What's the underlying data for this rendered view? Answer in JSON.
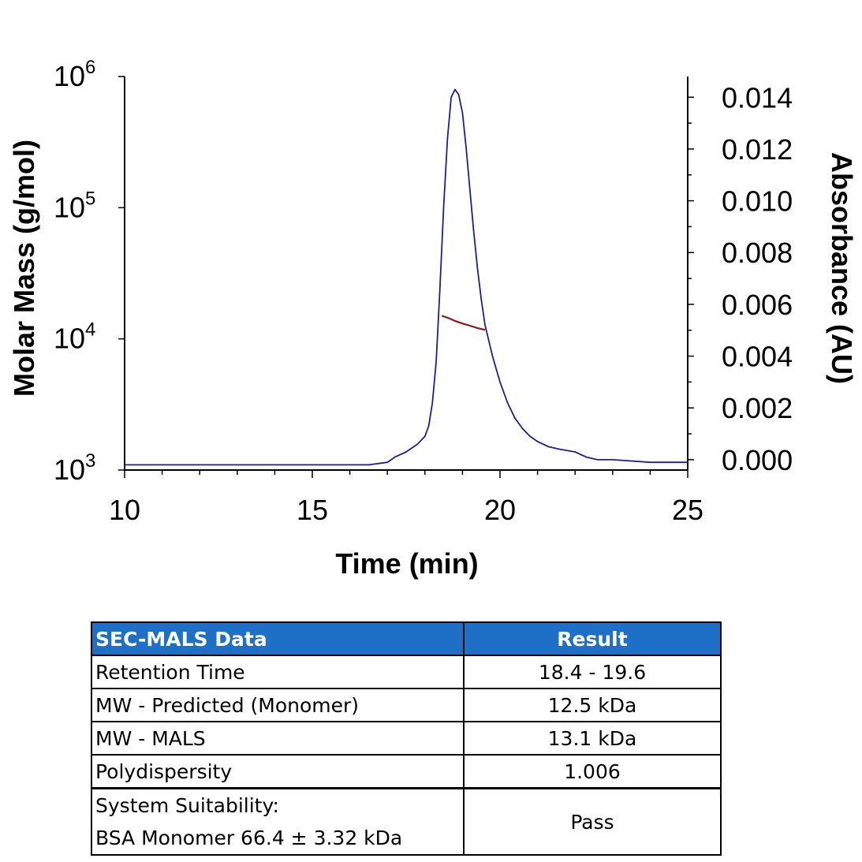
{
  "chart_data": {
    "type": "line",
    "xlabel": "Time (min)",
    "ylabel_left": "Molar Mass (g/mol)",
    "ylabel_right": "Absorbance (AU)",
    "xlim": [
      10,
      25
    ],
    "x_ticks": [
      10,
      15,
      20,
      25
    ],
    "ylim_left": [
      1000,
      1000000
    ],
    "yscale_left": "log",
    "y_ticks_left": [
      {
        "base": "10",
        "exp": "3"
      },
      {
        "base": "10",
        "exp": "4"
      },
      {
        "base": "10",
        "exp": "5"
      },
      {
        "base": "10",
        "exp": "6"
      }
    ],
    "ylim_right": [
      -0.0004,
      0.0148
    ],
    "y_ticks_right": [
      "0.000",
      "0.002",
      "0.004",
      "0.006",
      "0.008",
      "0.010",
      "0.012",
      "0.014"
    ],
    "grid": false,
    "series": [
      {
        "axis": "right",
        "color": "#1f1f8f",
        "x": [
          10.0,
          12.0,
          14.0,
          15.5,
          16.5,
          17.0,
          17.2,
          17.5,
          17.8,
          18.0,
          18.1,
          18.2,
          18.3,
          18.4,
          18.5,
          18.6,
          18.7,
          18.8,
          18.9,
          19.0,
          19.1,
          19.2,
          19.3,
          19.4,
          19.5,
          19.6,
          19.8,
          20.0,
          20.2,
          20.4,
          20.6,
          20.8,
          21.0,
          21.3,
          21.6,
          22.0,
          22.3,
          22.6,
          23.0,
          24.0,
          25.0
        ],
        "y": [
          -0.0002,
          -0.0002,
          -0.0002,
          -0.0002,
          -0.0002,
          -0.0001,
          0.0001,
          0.0003,
          0.0006,
          0.0009,
          0.0013,
          0.0022,
          0.0038,
          0.0066,
          0.0098,
          0.0124,
          0.014,
          0.0143,
          0.0141,
          0.0134,
          0.012,
          0.0104,
          0.0088,
          0.0074,
          0.0062,
          0.0052,
          0.004,
          0.003,
          0.0022,
          0.0016,
          0.0012,
          0.0009,
          0.0007,
          0.0005,
          0.0004,
          0.0003,
          0.0001,
          0.0,
          0.0,
          -0.0001,
          -0.0001
        ]
      },
      {
        "axis": "left",
        "color": "#8b1a1a",
        "x": [
          18.45,
          18.6,
          18.8,
          19.0,
          19.2,
          19.4,
          19.6
        ],
        "y": [
          15000,
          14500,
          13700,
          13100,
          12600,
          12100,
          11700
        ]
      }
    ]
  },
  "table": {
    "headers": [
      "SEC-MALS Data",
      "Result"
    ],
    "rows": [
      {
        "param": "Retention Time",
        "value": "18.4 - 19.6"
      },
      {
        "param": "MW - Predicted (Monomer)",
        "value": "12.5 kDa"
      },
      {
        "param": "MW - MALS",
        "value": "13.1 kDa"
      },
      {
        "param": "Polydispersity",
        "value": "1.006"
      }
    ],
    "suitability": {
      "line1": "System Suitability:",
      "line2": "BSA Monomer 66.4 ± 3.32 kDa",
      "value": "Pass"
    }
  }
}
